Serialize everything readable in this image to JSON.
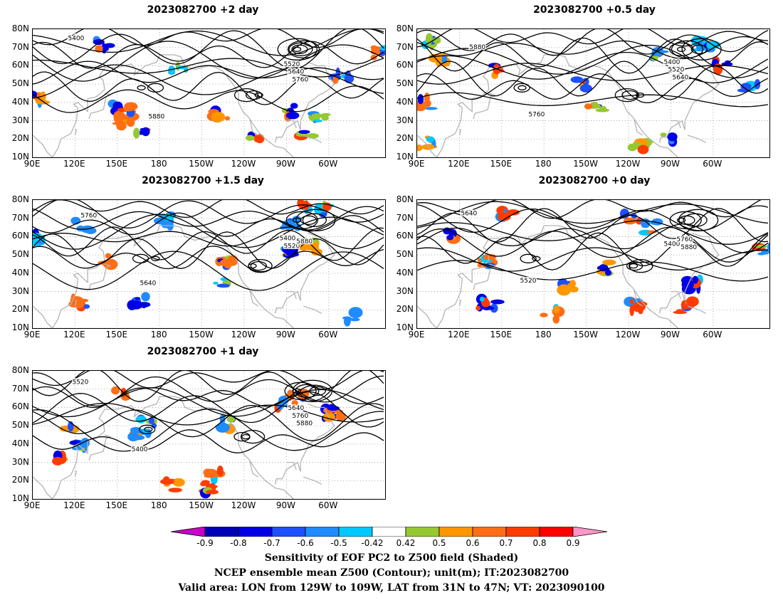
{
  "panels": [
    {
      "title": "2023082700 +2 day"
    },
    {
      "title": "2023082700 +0.5 day"
    },
    {
      "title": "2023082700 +1.5 day"
    },
    {
      "title": "2023082700 +0 day"
    },
    {
      "title": "2023082700 +1 day"
    }
  ],
  "axes": {
    "lat_labels": [
      "80N",
      "70N",
      "60N",
      "50N",
      "40N",
      "30N",
      "20N",
      "10N"
    ],
    "lon_labels": [
      "90E",
      "120E",
      "150E",
      "180",
      "150W",
      "120W",
      "90W",
      "60W"
    ],
    "lat_range": [
      10,
      80
    ],
    "lon_range": [
      90,
      340
    ]
  },
  "contour_labels": [
    "5400",
    "5520",
    "5640",
    "5760",
    "5880"
  ],
  "colorbar": {
    "labels": [
      "-0.9",
      "-0.8",
      "-0.7",
      "-0.6",
      "-0.5",
      "-0.42",
      "0.42",
      "0.5",
      "0.6",
      "0.7",
      "0.8",
      "0.9"
    ],
    "colors": [
      "#c800c8",
      "#0000b4",
      "#0000e6",
      "#1e50ff",
      "#1e8cff",
      "#00c8ff",
      "#ffffff",
      "#96c832",
      "#ff9600",
      "#ff6e14",
      "#ff3c00",
      "#ff0000",
      "#ff96c8"
    ]
  },
  "caption": {
    "line1": "Sensitivity of EOF PC2 to Z500 field (Shaded)",
    "line2": "NCEP ensemble mean Z500 (Contour); unit(m); IT:2023082700",
    "line3": "Valid area: LON from 129W to 109W, LAT from 31N to 47N; VT: 2023090100"
  }
}
